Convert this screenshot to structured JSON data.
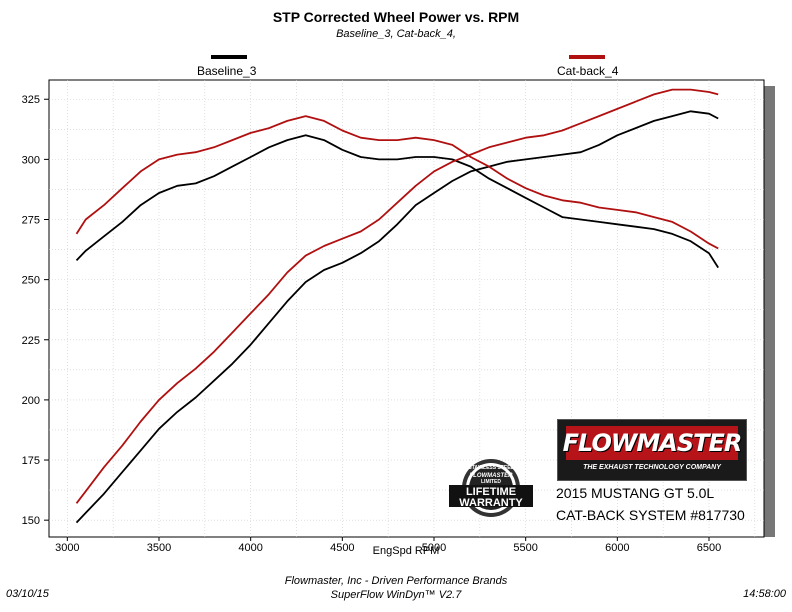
{
  "title": "STP Corrected Wheel Power vs. RPM",
  "subtitle": "Baseline_3, Cat-back_4,",
  "legend": [
    {
      "label": "Baseline_3",
      "color": "#000000"
    },
    {
      "label": "Cat-back_4",
      "color": "#b01010"
    }
  ],
  "logo": {
    "brand": "FLOWMASTER",
    "tagline": "THE EXHAUST TECHNOLOGY COMPANY"
  },
  "badge": {
    "top_text": "STAINLESS STEEL",
    "brand": "FLOWMASTER",
    "limited": "LIMITED",
    "line1": "LIFETIME",
    "line2": "WARRANTY"
  },
  "vehicle": {
    "line1": "2015 MUSTANG GT 5.0L",
    "line2": "CAT-BACK SYSTEM #817730"
  },
  "footer": {
    "date": "03/10/15",
    "time": "14:58:00",
    "company": "Flowmaster, Inc - Driven Performance Brands",
    "software": "SuperFlow WinDyn™ V2.7"
  },
  "chart_data": {
    "type": "line",
    "title": "STP Corrected Wheel Power vs. RPM",
    "xlabel": "EngSpd  RPM",
    "ylabel": "",
    "xlim": [
      2900,
      6800
    ],
    "ylim": [
      143,
      333
    ],
    "xticks": [
      3000,
      3500,
      4000,
      4500,
      5000,
      5500,
      6000,
      6500
    ],
    "yticks": [
      150,
      175,
      200,
      225,
      250,
      275,
      300,
      325
    ],
    "grid": true,
    "legend_position": "top",
    "series": [
      {
        "name": "Baseline_3",
        "kind": "torque",
        "color": "#000000",
        "x": [
          3050,
          3100,
          3200,
          3300,
          3400,
          3500,
          3600,
          3700,
          3800,
          3900,
          4000,
          4100,
          4200,
          4300,
          4400,
          4500,
          4600,
          4700,
          4800,
          4900,
          5000,
          5100,
          5200,
          5300,
          5400,
          5500,
          5600,
          5700,
          5800,
          5900,
          6000,
          6100,
          6200,
          6300,
          6400,
          6500,
          6550
        ],
        "values": [
          258,
          262,
          268,
          274,
          281,
          286,
          289,
          290,
          293,
          297,
          301,
          305,
          308,
          310,
          308,
          304,
          301,
          300,
          300,
          301,
          301,
          300,
          297,
          292,
          288,
          284,
          280,
          276,
          275,
          274,
          273,
          272,
          271,
          269,
          266,
          261,
          255
        ]
      },
      {
        "name": "Baseline_3",
        "kind": "power",
        "color": "#000000",
        "x": [
          3050,
          3100,
          3200,
          3300,
          3400,
          3500,
          3600,
          3700,
          3800,
          3900,
          4000,
          4100,
          4200,
          4300,
          4400,
          4500,
          4600,
          4700,
          4800,
          4900,
          5000,
          5100,
          5200,
          5300,
          5400,
          5500,
          5600,
          5700,
          5800,
          5900,
          6000,
          6100,
          6200,
          6300,
          6400,
          6500,
          6550
        ],
        "values": [
          149,
          153,
          161,
          170,
          179,
          188,
          195,
          201,
          208,
          215,
          223,
          232,
          241,
          249,
          254,
          257,
          261,
          266,
          273,
          281,
          286,
          291,
          295,
          297,
          299,
          300,
          301,
          302,
          303,
          306,
          310,
          313,
          316,
          318,
          320,
          319,
          317
        ]
      },
      {
        "name": "Cat-back_4",
        "kind": "torque",
        "color": "#b01010",
        "x": [
          3050,
          3100,
          3200,
          3300,
          3400,
          3500,
          3600,
          3700,
          3800,
          3900,
          4000,
          4100,
          4200,
          4300,
          4400,
          4500,
          4600,
          4700,
          4800,
          4900,
          5000,
          5100,
          5200,
          5300,
          5400,
          5500,
          5600,
          5700,
          5800,
          5900,
          6000,
          6100,
          6200,
          6300,
          6400,
          6500,
          6550
        ],
        "values": [
          269,
          275,
          281,
          288,
          295,
          300,
          302,
          303,
          305,
          308,
          311,
          313,
          316,
          318,
          316,
          312,
          309,
          308,
          308,
          309,
          308,
          306,
          301,
          297,
          292,
          288,
          285,
          283,
          282,
          280,
          279,
          278,
          276,
          274,
          270,
          265,
          263
        ]
      },
      {
        "name": "Cat-back_4",
        "kind": "power",
        "color": "#b01010",
        "x": [
          3050,
          3100,
          3200,
          3300,
          3400,
          3500,
          3600,
          3700,
          3800,
          3900,
          4000,
          4100,
          4200,
          4300,
          4400,
          4500,
          4600,
          4700,
          4800,
          4900,
          5000,
          5100,
          5200,
          5300,
          5400,
          5500,
          5600,
          5700,
          5800,
          5900,
          6000,
          6100,
          6200,
          6300,
          6400,
          6500,
          6550
        ],
        "values": [
          157,
          162,
          172,
          181,
          191,
          200,
          207,
          213,
          220,
          228,
          236,
          244,
          253,
          260,
          264,
          267,
          270,
          275,
          282,
          289,
          295,
          299,
          302,
          305,
          307,
          309,
          310,
          312,
          315,
          318,
          321,
          324,
          327,
          329,
          329,
          328,
          327
        ]
      }
    ]
  }
}
